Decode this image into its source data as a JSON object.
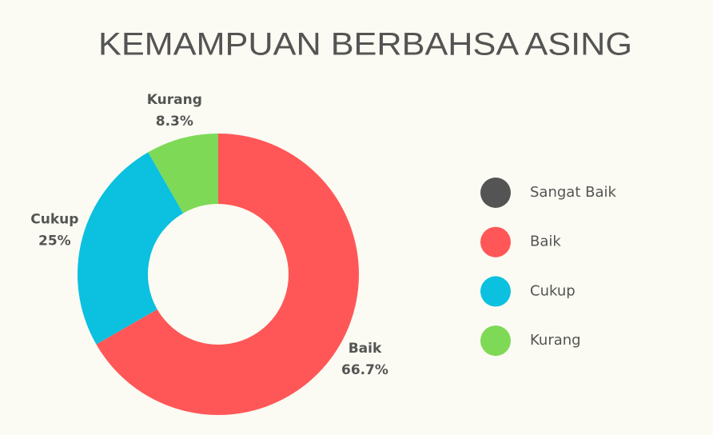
{
  "chart_data": {
    "type": "donut",
    "title": "KEMAMPUAN BERBAHSA ASING",
    "categories": [
      "Sangat Baik",
      "Baik",
      "Cukup",
      "Kurang"
    ],
    "values": [
      0,
      66.7,
      25,
      8.3
    ],
    "value_labels": [
      null,
      "66.7%",
      "25%",
      "8.3%"
    ],
    "colors": [
      "#545454",
      "#ff5757",
      "#0cc0df",
      "#7ed957"
    ],
    "legend": "right"
  }
}
